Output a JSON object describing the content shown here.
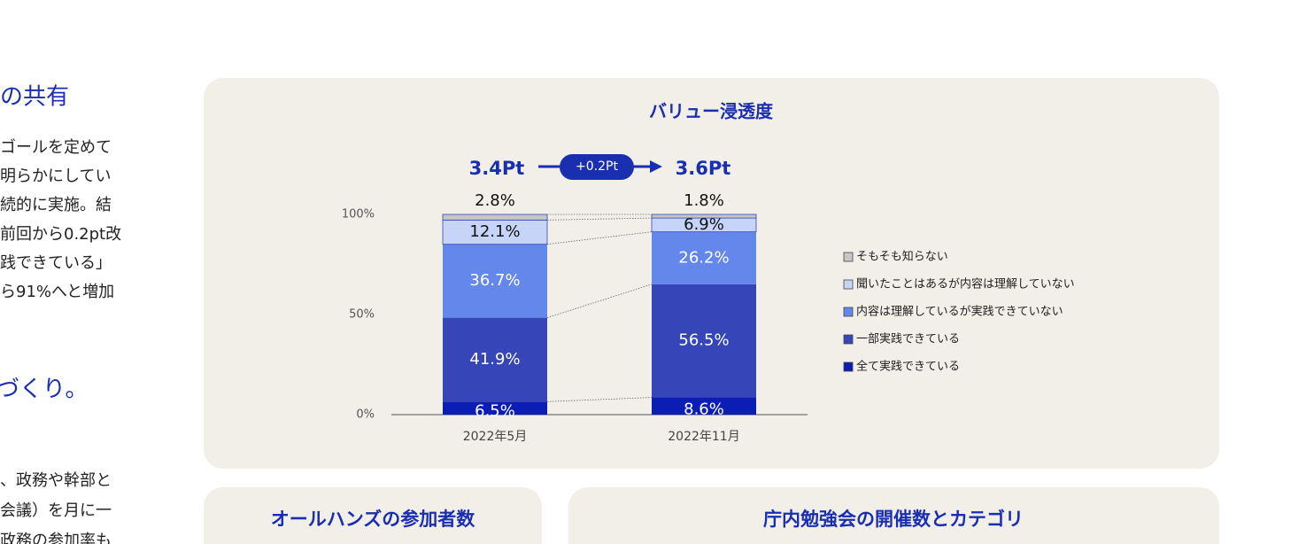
{
  "sidebar": {
    "headings": [
      "の共有",
      "づくり。"
    ],
    "paragraph1": [
      "ゴールを定めて",
      "明らかにしてい",
      "続的に実施。結",
      "前回から0.2pt改",
      "践できている」",
      "ら91%へと増加"
    ],
    "paragraph2": [
      "、政務や幹部と",
      "会議）を月に一",
      "政務の参加率も"
    ]
  },
  "chart_data": {
    "type": "bar",
    "stacked": true,
    "title": "バリュー浸透度",
    "categories": [
      "2022年5月",
      "2022年11月"
    ],
    "series": [
      {
        "name": "全て実践できている",
        "color": "#0b1db5",
        "values": [
          6.5,
          8.6
        ],
        "value_labels": [
          "6.5%",
          "8.6%"
        ]
      },
      {
        "name": "一部実践できている",
        "color": "#3646b9",
        "values": [
          41.9,
          56.5
        ],
        "value_labels": [
          "41.9%",
          "56.5%"
        ]
      },
      {
        "name": "内容は理解しているが実践できていない",
        "color": "#6487ec",
        "values": [
          36.7,
          26.2
        ],
        "value_labels": [
          "36.7%",
          "26.2%"
        ]
      },
      {
        "name": "聞いたことはあるが内容は理解していない",
        "color": "#c6d4f8",
        "values": [
          12.1,
          6.9
        ],
        "value_labels": [
          "12.1%",
          "6.9%"
        ]
      },
      {
        "name": "そもそも知らない",
        "color": "#c6c6c6",
        "values": [
          2.8,
          1.8
        ],
        "value_labels": [
          "2.8%",
          "1.8%"
        ]
      }
    ],
    "ylim": [
      0,
      100
    ],
    "yticks": [
      {
        "value": 0,
        "label": "0%"
      },
      {
        "value": 50,
        "label": "50%"
      },
      {
        "value": 100,
        "label": "100%"
      }
    ],
    "scores": [
      "3.4Pt",
      "3.6Pt"
    ],
    "change": "+0.2Pt"
  },
  "bottom_cards": [
    "オールハンズの参加者数",
    "庁内勉強会の開催数とカテゴリ"
  ]
}
